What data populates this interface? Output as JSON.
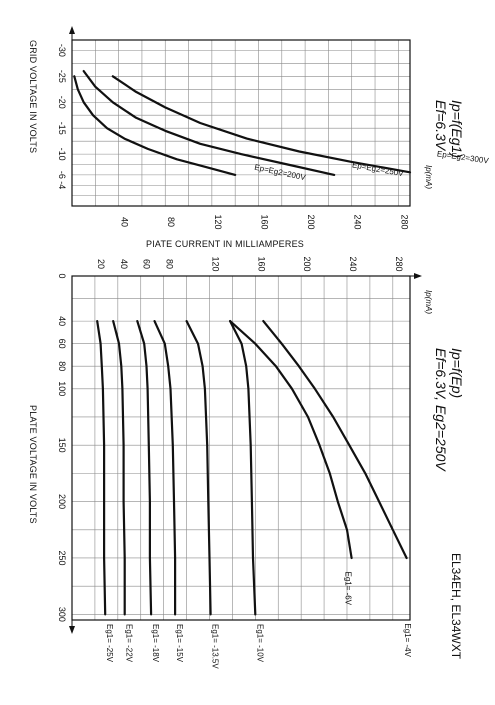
{
  "header": {
    "model": "EL34EH, EL34WXT"
  },
  "chart_data": [
    {
      "id": "transfer",
      "type": "line",
      "title": "Ip=f(Eg1)",
      "subtitle": "Ef=6.3V",
      "xlabel": "PIATE CURRENT IN MILLIAMPERES",
      "ylabel": "GRID VOLTAGE IN VOLTS",
      "x_unit_label": "Ip(mA)",
      "xlim": [
        0,
        290
      ],
      "ylim": [
        0,
        -32
      ],
      "x_ticks": [
        "40",
        "80",
        "120",
        "160",
        "200",
        "240",
        "280"
      ],
      "y_ticks": [
        "-4",
        "-6",
        "-10",
        "-15",
        "-20",
        "-25",
        "-30"
      ],
      "grid": true,
      "series": [
        {
          "name": "Ep=Eg2=200V",
          "x": [
            2,
            5,
            10,
            18,
            30,
            45,
            65,
            90,
            115,
            140
          ],
          "y": [
            -25,
            -22.5,
            -20,
            -17.5,
            -15,
            -13,
            -11,
            -9,
            -7.5,
            -6
          ]
        },
        {
          "name": "Ep=Eg2=250V",
          "x": [
            10,
            20,
            35,
            55,
            80,
            110,
            145,
            185,
            225
          ],
          "y": [
            -26,
            -23,
            -20,
            -17,
            -14.5,
            -12,
            -10,
            -8,
            -6
          ]
        },
        {
          "name": "Ep=Eg2=300V",
          "x": [
            35,
            55,
            80,
            110,
            150,
            195,
            240,
            290
          ],
          "y": [
            -25,
            -22,
            -19,
            -16,
            -13,
            -10.5,
            -8.5,
            -6.5
          ]
        }
      ]
    },
    {
      "id": "plate",
      "type": "line",
      "title": "Ip=f(Ep)",
      "subtitle": "Ef=6.3V, Eg2=250V",
      "xlabel": "PLATE VOLTAGE IN VOLTS",
      "x_unit_label": "Ip(mA)",
      "xlim": [
        0,
        305
      ],
      "ylim": [
        0,
        295
      ],
      "x_ticks": [
        "0",
        "40",
        "60",
        "80",
        "100",
        "150",
        "200",
        "250",
        "300"
      ],
      "y_ticks": [
        "20",
        "40",
        "60",
        "80",
        "120",
        "160",
        "200",
        "240",
        "280"
      ],
      "grid": true,
      "series": [
        {
          "name": "Eg1=-4V",
          "x": [
            40,
            60,
            80,
            100,
            125,
            150,
            175,
            200,
            225,
            250
          ],
          "y": [
            167,
            183,
            198,
            212,
            228,
            242,
            256,
            268,
            280,
            292
          ]
        },
        {
          "name": "Eg1=-6V",
          "x": [
            40,
            60,
            80,
            100,
            125,
            150,
            175,
            200,
            225,
            250
          ],
          "y": [
            138,
            160,
            178,
            192,
            206,
            216,
            225,
            232,
            240,
            244
          ]
        },
        {
          "name": "Eg1=-10V",
          "x": [
            40,
            60,
            80,
            100,
            150,
            200,
            250,
            300
          ],
          "y": [
            138,
            148,
            152,
            154,
            156,
            157,
            158,
            160
          ]
        },
        {
          "name": "Eg1=-13.5V",
          "x": [
            40,
            60,
            80,
            100,
            150,
            200,
            250,
            300
          ],
          "y": [
            100,
            110,
            114,
            116,
            118,
            119,
            120,
            121
          ]
        },
        {
          "name": "Eg1=-15V",
          "x": [
            40,
            60,
            80,
            100,
            150,
            200,
            250,
            300
          ],
          "y": [
            72,
            81,
            84,
            86,
            88,
            89,
            90,
            90
          ]
        },
        {
          "name": "Eg1=-18V",
          "x": [
            40,
            60,
            80,
            100,
            150,
            200,
            250,
            300
          ],
          "y": [
            57,
            63,
            65,
            66,
            67,
            68,
            68,
            69
          ]
        },
        {
          "name": "Eg1=-22V",
          "x": [
            40,
            60,
            80,
            100,
            150,
            200,
            250,
            300
          ],
          "y": [
            36,
            41,
            43,
            44,
            45,
            45,
            46,
            46
          ]
        },
        {
          "name": "Eg1=-25V",
          "x": [
            40,
            60,
            80,
            100,
            150,
            200,
            250,
            300
          ],
          "y": [
            22,
            25,
            26,
            27,
            28,
            28,
            28,
            29
          ]
        }
      ]
    }
  ]
}
